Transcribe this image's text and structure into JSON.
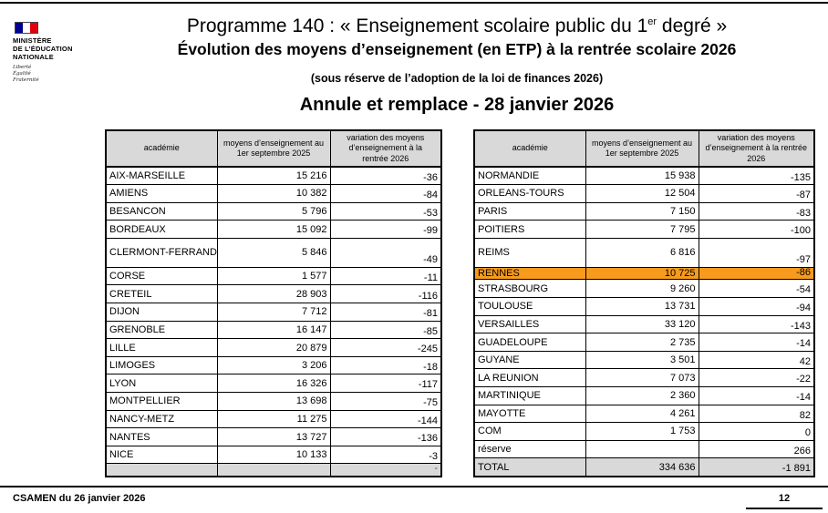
{
  "page": {
    "logo": {
      "ministry": [
        "MINISTÈRE",
        "DE L’ÉDUCATION",
        "NATIONALE"
      ],
      "motto": [
        "Liberté",
        "Égalité",
        "Fraternité"
      ]
    },
    "title": {
      "line1_prefix": "Programme 140 : « Enseignement scolaire public du 1",
      "line1_sup": "er",
      "line1_suffix": " degré »",
      "line2": "Évolution des moyens d’enseignement (en ETP) à la rentrée scolaire 2026",
      "line3": "(sous réserve de l’adoption de la loi de finances 2026)",
      "line4": "Annule et remplace - 28 janvier 2026"
    },
    "columns": [
      "académie",
      "moyens d’enseignement au 1er septembre 2025",
      "variation des moyens d’enseignement à la rentrée 2026"
    ],
    "footer": {
      "source": "CSAMEN du 26 janvier 2026",
      "page_number": "12"
    },
    "colors": {
      "header_bg": "#d9d9d9",
      "highlight_orange": "#f79b1d",
      "total_bg": "#d9d9d9",
      "flag_blue": "#000091",
      "flag_red": "#e1000f"
    }
  },
  "left_table": {
    "rows": [
      {
        "academie": "AIX-MARSEILLE",
        "moyens": "15 216",
        "variation": "-36",
        "style": "normal"
      },
      {
        "academie": "AMIENS",
        "moyens": "10 382",
        "variation": "-84",
        "style": "normal"
      },
      {
        "academie": "BESANCON",
        "moyens": "5 796",
        "variation": "-53",
        "style": "normal"
      },
      {
        "academie": "BORDEAUX",
        "moyens": "15 092",
        "variation": "-99",
        "style": "normal"
      },
      {
        "academie": "CLERMONT-FERRAND",
        "moyens": "5 846",
        "variation": "-49",
        "style": "tall"
      },
      {
        "academie": "CORSE",
        "moyens": "1 577",
        "variation": "-11",
        "style": "normal"
      },
      {
        "academie": "CRETEIL",
        "moyens": "28 903",
        "variation": "-116",
        "style": "normal"
      },
      {
        "academie": "DIJON",
        "moyens": "7 712",
        "variation": "-81",
        "style": "normal"
      },
      {
        "academie": "GRENOBLE",
        "moyens": "16 147",
        "variation": "-85",
        "style": "normal"
      },
      {
        "academie": "LILLE",
        "moyens": "20 879",
        "variation": "-245",
        "style": "normal"
      },
      {
        "academie": "LIMOGES",
        "moyens": "3 206",
        "variation": "-18",
        "style": "normal"
      },
      {
        "academie": "LYON",
        "moyens": "16 326",
        "variation": "-117",
        "style": "normal"
      },
      {
        "academie": "MONTPELLIER",
        "moyens": "13 698",
        "variation": "-75",
        "style": "normal"
      },
      {
        "academie": "NANCY-METZ",
        "moyens": "11 275",
        "variation": "-144",
        "style": "normal"
      },
      {
        "academie": "NANTES",
        "moyens": "13 727",
        "variation": "-136",
        "style": "normal"
      },
      {
        "academie": "NICE",
        "moyens": "10 133",
        "variation": "-3",
        "style": "normal"
      },
      {
        "academie": "",
        "moyens": "",
        "variation": "-",
        "style": "empty"
      }
    ]
  },
  "right_table": {
    "rows": [
      {
        "academie": "NORMANDIE",
        "moyens": "15 938",
        "variation": "-135",
        "style": "normal"
      },
      {
        "academie": "ORLEANS-TOURS",
        "moyens": "12 504",
        "variation": "-87",
        "style": "normal"
      },
      {
        "academie": "PARIS",
        "moyens": "7 150",
        "variation": "-83",
        "style": "normal"
      },
      {
        "academie": "POITIERS",
        "moyens": "7 795",
        "variation": "-100",
        "style": "normal"
      },
      {
        "academie": "REIMS",
        "moyens": "6 816",
        "variation": "-97",
        "style": "tall"
      },
      {
        "academie": "RENNES",
        "moyens": "10 725",
        "variation": "-86",
        "style": "highlight"
      },
      {
        "academie": "STRASBOURG",
        "moyens": "9 260",
        "variation": "-54",
        "style": "normal"
      },
      {
        "academie": "TOULOUSE",
        "moyens": "13 731",
        "variation": "-94",
        "style": "normal"
      },
      {
        "academie": "VERSAILLES",
        "moyens": "33 120",
        "variation": "-143",
        "style": "normal"
      },
      {
        "academie": "GUADELOUPE",
        "moyens": "2 735",
        "variation": "-14",
        "style": "normal"
      },
      {
        "academie": "GUYANE",
        "moyens": "3 501",
        "variation": "42",
        "style": "normal"
      },
      {
        "academie": "LA REUNION",
        "moyens": "7 073",
        "variation": "-22",
        "style": "normal"
      },
      {
        "academie": "MARTINIQUE",
        "moyens": "2 360",
        "variation": "-14",
        "style": "normal"
      },
      {
        "academie": "MAYOTTE",
        "moyens": "4 261",
        "variation": "82",
        "style": "normal"
      },
      {
        "academie": "COM",
        "moyens": "1 753",
        "variation": "0",
        "style": "normal"
      },
      {
        "academie": "réserve",
        "moyens": "",
        "variation": "266",
        "style": "normal"
      },
      {
        "academie": "TOTAL",
        "moyens": "334 636",
        "variation": "-1 891",
        "style": "total"
      }
    ]
  }
}
